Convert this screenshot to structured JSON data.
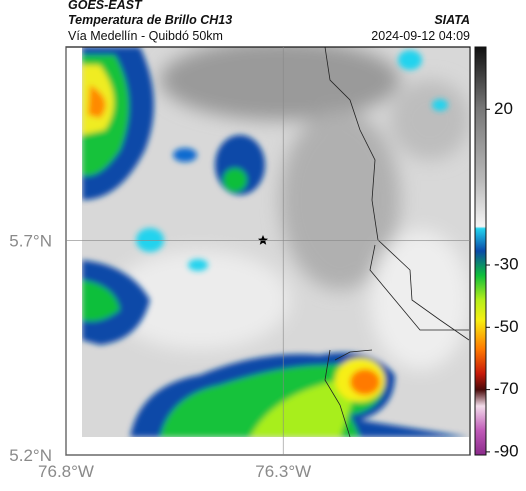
{
  "header": {
    "satellite": "GOES-EAST",
    "product": "Temperatura de Brillo CH13",
    "route": "Vía Medellín - Quibdó 50km",
    "source": "SIATA",
    "datetime": "2024-09-12 04:09"
  },
  "map": {
    "xlim": [
      -76.8,
      -75.87
    ],
    "ylim": [
      5.2,
      6.15
    ],
    "xticks": [
      {
        "value": -76.8,
        "label": "76.8°W"
      },
      {
        "value": -76.3,
        "label": "76.3°W"
      }
    ],
    "yticks": [
      {
        "value": 5.7,
        "label": "5.7°N"
      },
      {
        "value": 5.2,
        "label": "5.2°N"
      }
    ],
    "grid": true
  },
  "colorbar": {
    "lim": [
      -91,
      40
    ],
    "ticks": [
      20,
      -30,
      -50,
      -70,
      -90
    ]
  }
}
